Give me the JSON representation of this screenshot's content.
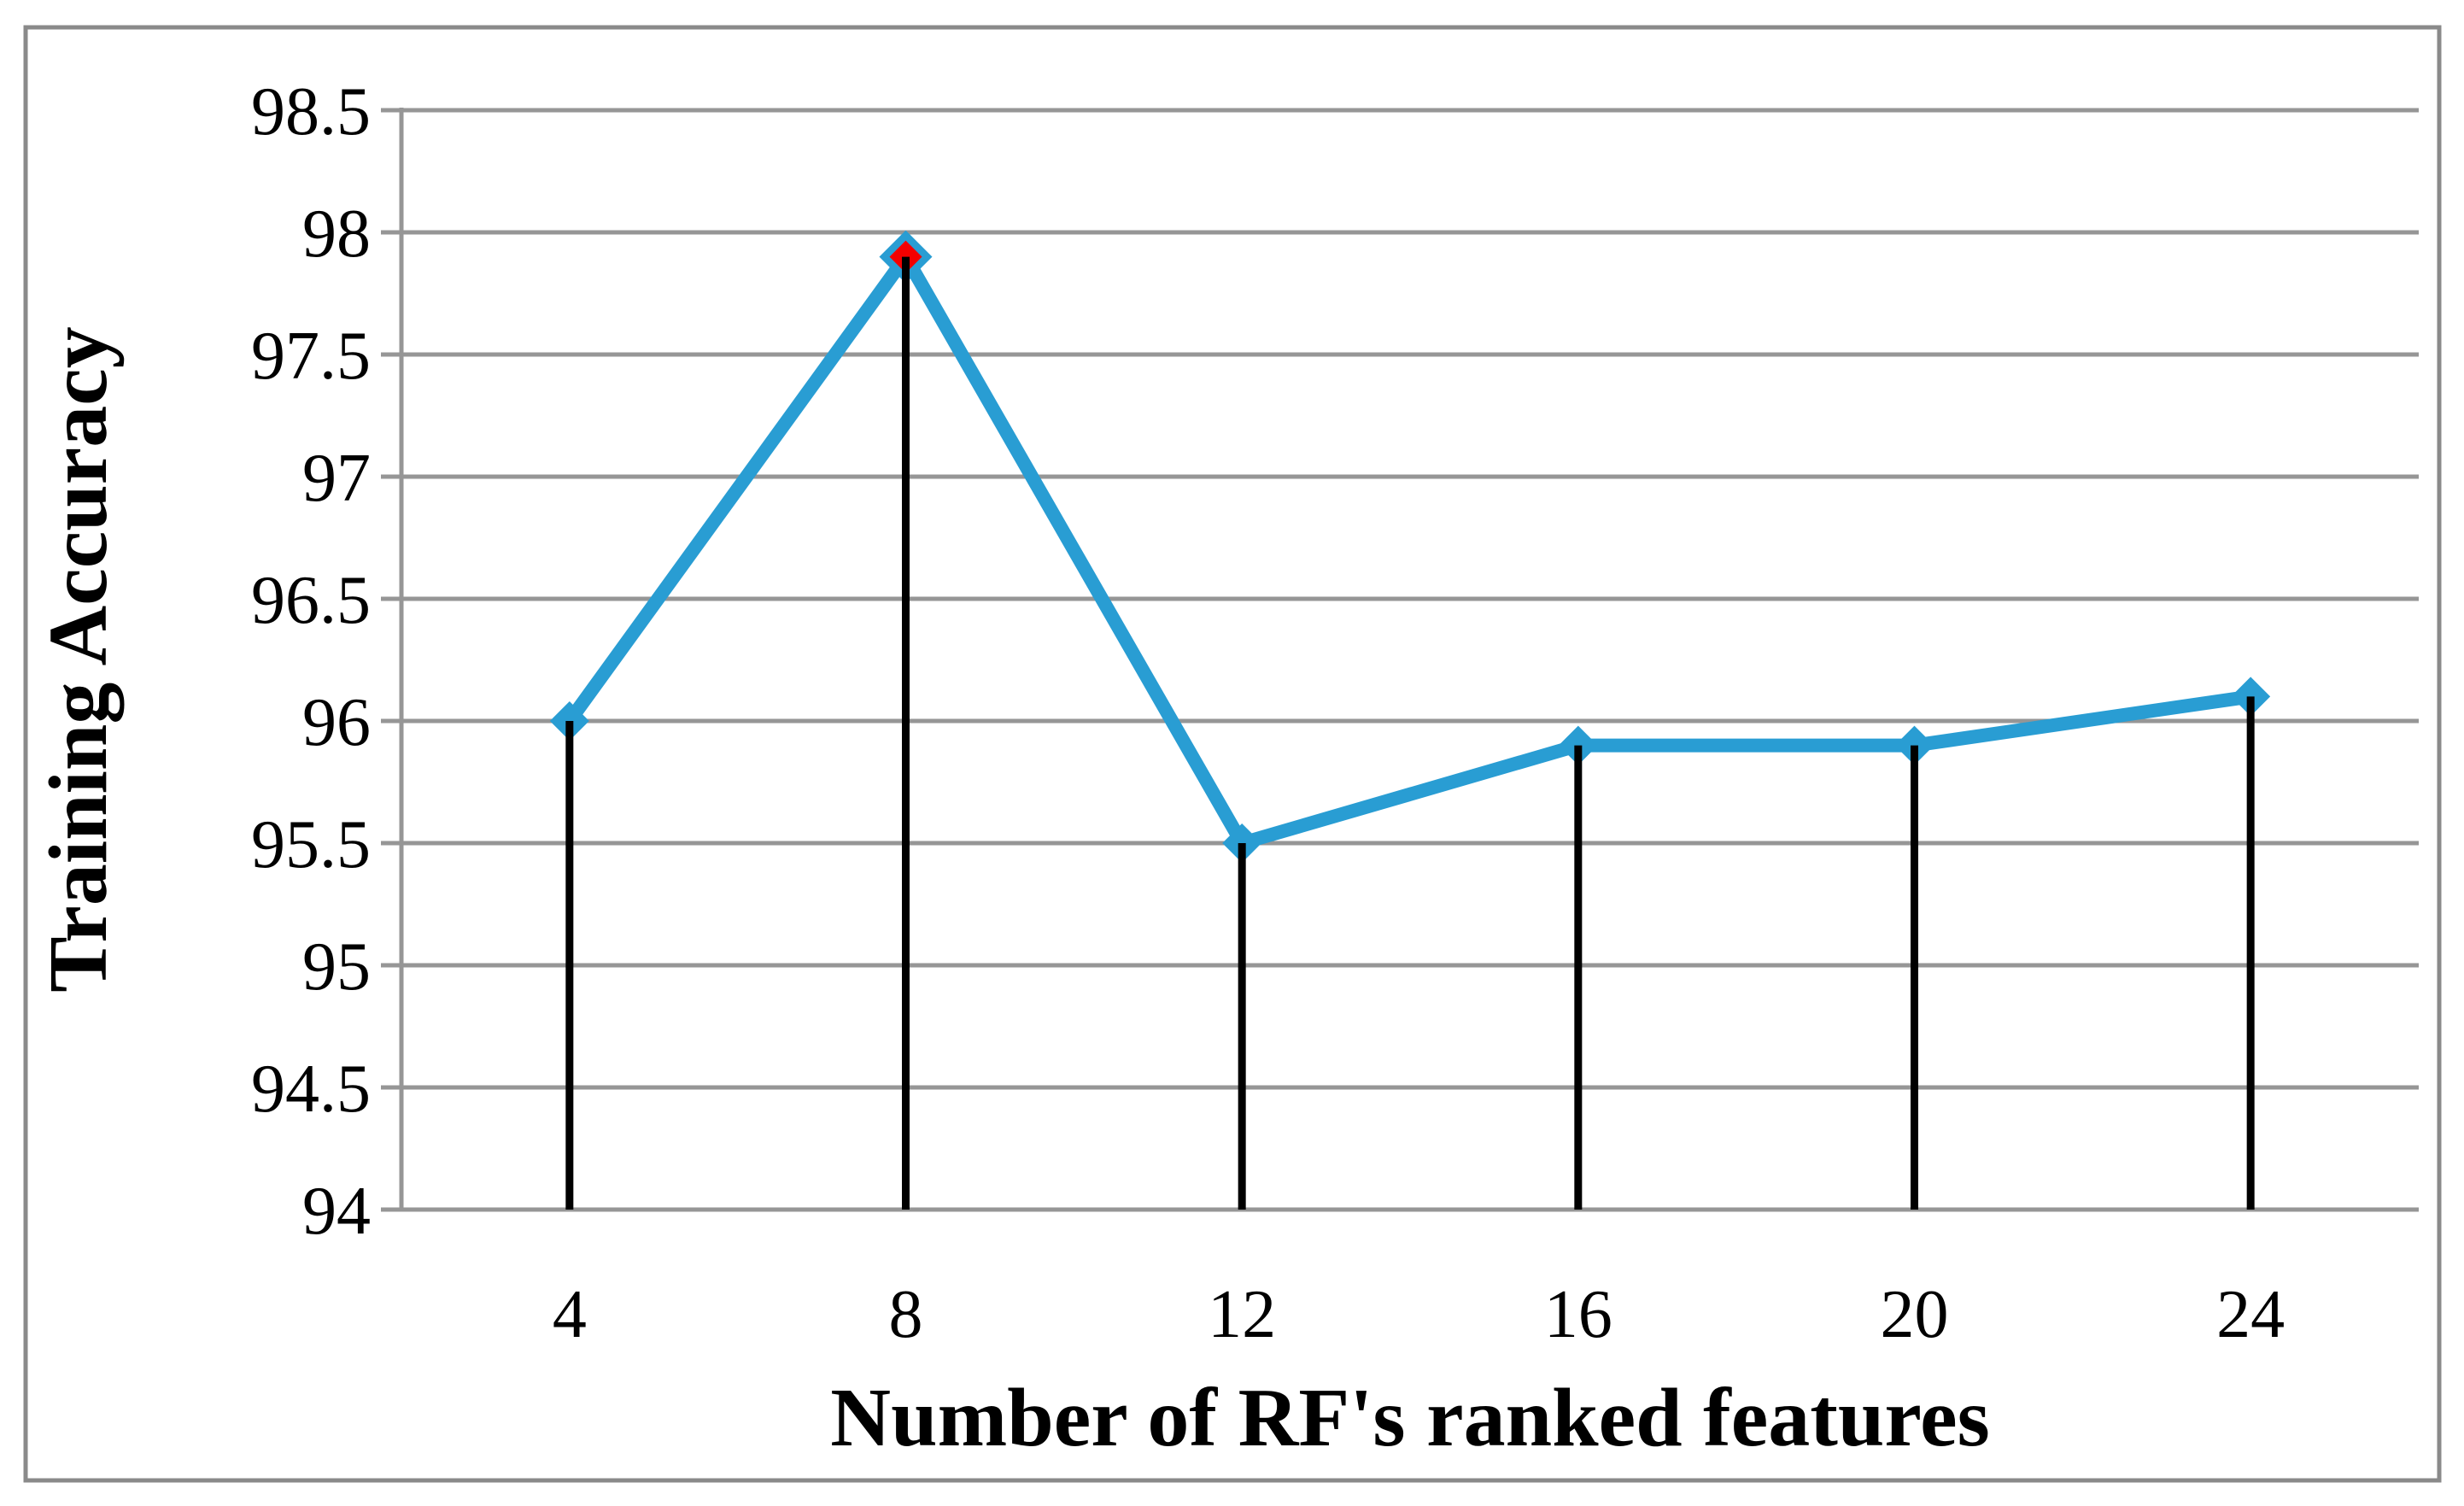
{
  "chart_data": {
    "type": "line",
    "title": "",
    "xlabel": "Number of RF's ranked features",
    "ylabel": "Training Accuracy",
    "x_tick_labels": [
      "4",
      "8",
      "12",
      "16",
      "20",
      "24"
    ],
    "x_values": [
      4,
      8,
      12,
      16,
      20,
      24
    ],
    "series": [
      {
        "name": "Training Accuracy",
        "values": [
          96,
          97.9,
          95.5,
          95.9,
          95.9,
          96.1
        ]
      }
    ],
    "ylim": [
      94,
      98.5
    ],
    "ytick_step": 0.5,
    "ytick_labels": [
      "94",
      "94.5",
      "95",
      "95.5",
      "96",
      "96.5",
      "97",
      "97.5",
      "98",
      "98.5"
    ],
    "grid": "horizontal-only",
    "legend_position": "none",
    "marker_shape": "diamond",
    "has_drop_lines": true,
    "highlight_index": 1,
    "colors": {
      "line": "#299dd3",
      "marker": "#299dd3",
      "highlight_marker": "#f40000",
      "gridline": "#969696",
      "axis": "#969696",
      "drop_line": "#000000",
      "figure_border": "#8a8a8a",
      "text": "#000000",
      "background": "#ffffff"
    }
  }
}
